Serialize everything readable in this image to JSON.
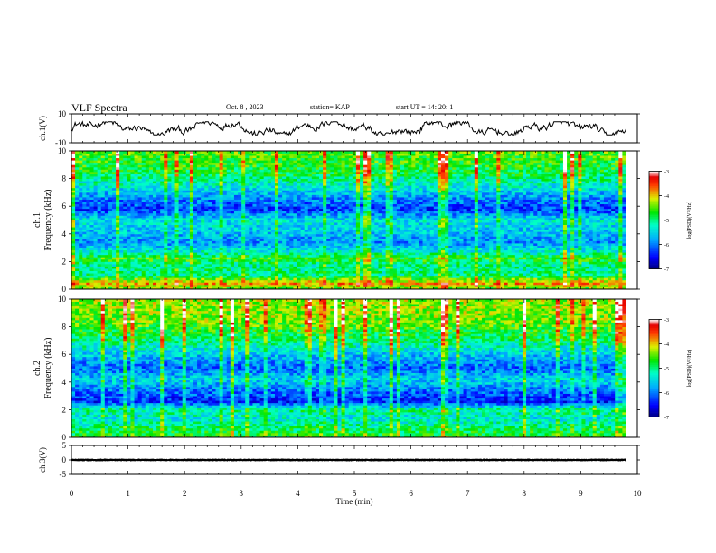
{
  "header": {
    "title": "VLF Spectra",
    "date": "Oct. 8 , 2023",
    "station": "station= KAP",
    "start": "start  UT =   14: 20: 1"
  },
  "chart_data": [
    {
      "type": "line",
      "panel": "ch1-waveform",
      "ylabel": "ch.1(V)",
      "ylim": [
        -10,
        10
      ],
      "ytick_labels": [
        "10",
        "-10"
      ],
      "x_range_min": [
        0,
        9.8
      ],
      "trace_amplitude_V": [
        -3,
        3
      ],
      "note_color": "#000000"
    },
    {
      "type": "heatmap",
      "panel": "ch1-spectrogram",
      "ylabel_top": "ch.1",
      "ylabel": "Frequency (kHz)",
      "ylim": [
        0,
        10
      ],
      "ytick_labels": [
        "0",
        "2",
        "4",
        "6",
        "8",
        "10"
      ],
      "x_range_min": [
        0,
        9.8
      ],
      "band_profile": [
        {
          "f_khz": 0.0,
          "log_psd": -4.6
        },
        {
          "f_khz": 0.4,
          "log_psd": -3.8
        },
        {
          "f_khz": 1.0,
          "log_psd": -5.0
        },
        {
          "f_khz": 1.8,
          "log_psd": -5.1
        },
        {
          "f_khz": 2.2,
          "log_psd": -4.6
        },
        {
          "f_khz": 2.8,
          "log_psd": -5.4
        },
        {
          "f_khz": 3.4,
          "log_psd": -5.9
        },
        {
          "f_khz": 4.2,
          "log_psd": -5.6
        },
        {
          "f_khz": 5.0,
          "log_psd": -5.4
        },
        {
          "f_khz": 5.8,
          "log_psd": -6.3
        },
        {
          "f_khz": 6.4,
          "log_psd": -6.0
        },
        {
          "f_khz": 7.2,
          "log_psd": -5.5
        },
        {
          "f_khz": 8.5,
          "log_psd": -4.8
        },
        {
          "f_khz": 10.0,
          "log_psd": -4.5
        }
      ],
      "colorbar": {
        "label": "log(PSD)(V²/Hz)",
        "range": [
          -7,
          -3
        ],
        "ticks": [
          "-3",
          "-4",
          "-5",
          "-6",
          "-7"
        ]
      }
    },
    {
      "type": "heatmap",
      "panel": "ch2-spectrogram",
      "ylabel_top": "ch.2",
      "ylabel": "Frequency (kHz)",
      "ylim": [
        0,
        10
      ],
      "ytick_labels": [
        "0",
        "2",
        "4",
        "6",
        "8",
        "10"
      ],
      "x_range_min": [
        0,
        9.8
      ],
      "band_profile": [
        {
          "f_khz": 0.0,
          "log_psd": -4.7
        },
        {
          "f_khz": 0.6,
          "log_psd": -4.9
        },
        {
          "f_khz": 1.4,
          "log_psd": -5.4
        },
        {
          "f_khz": 2.0,
          "log_psd": -5.0
        },
        {
          "f_khz": 2.6,
          "log_psd": -6.4
        },
        {
          "f_khz": 3.4,
          "log_psd": -6.0
        },
        {
          "f_khz": 4.2,
          "log_psd": -5.5
        },
        {
          "f_khz": 5.0,
          "log_psd": -6.1
        },
        {
          "f_khz": 6.0,
          "log_psd": -5.6
        },
        {
          "f_khz": 7.0,
          "log_psd": -5.0
        },
        {
          "f_khz": 8.5,
          "log_psd": -4.4
        },
        {
          "f_khz": 10.0,
          "log_psd": -4.3
        }
      ],
      "colorbar": {
        "label": "log(PSD)(V²/Hz)",
        "range": [
          -7,
          -3
        ],
        "ticks": [
          "-3",
          "-4",
          "-5",
          "-6",
          "-7"
        ]
      }
    },
    {
      "type": "line",
      "panel": "ch3-waveform",
      "ylabel": "ch.3(V)",
      "ylim": [
        -5,
        5
      ],
      "ytick_labels": [
        "5",
        "0",
        "-5"
      ],
      "x_range_min": [
        0,
        9.8
      ],
      "trace_level_V": 0,
      "trace_amplitude_V": 0.4
    }
  ],
  "xaxis": {
    "label": "Time (min)",
    "range": [
      0,
      10
    ],
    "tick_labels": [
      "0",
      "1",
      "2",
      "3",
      "4",
      "5",
      "6",
      "7",
      "8",
      "9",
      "10"
    ]
  },
  "colors": {
    "low": "#000080",
    "mid": "#00e000",
    "high": "#ff0000",
    "top": "#ffffff"
  }
}
